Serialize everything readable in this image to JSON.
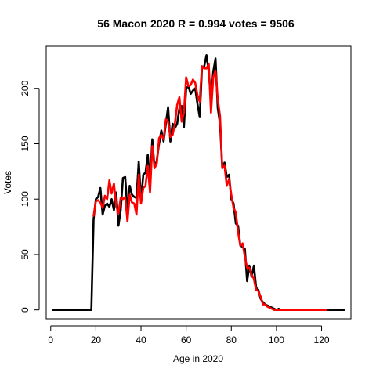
{
  "chart_data": {
    "type": "line",
    "title": "56 Macon 2020 R = 0.994 votes = 9506",
    "xlabel": "Age in 2020",
    "ylabel": "Votes",
    "xlim": [
      -2,
      133
    ],
    "ylim": [
      -8,
      238
    ],
    "xticks": [
      0,
      20,
      40,
      60,
      80,
      100,
      120
    ],
    "yticks": [
      0,
      50,
      100,
      150,
      200
    ],
    "grid": false,
    "legend": "none",
    "series": [
      {
        "color": "#000000",
        "points": [
          [
            1,
            0
          ],
          [
            18,
            0
          ],
          [
            19,
            82
          ],
          [
            20,
            100
          ],
          [
            21,
            102
          ],
          [
            22,
            110
          ],
          [
            23,
            86
          ],
          [
            24,
            94
          ],
          [
            25,
            96
          ],
          [
            26,
            93
          ],
          [
            27,
            100
          ],
          [
            28,
            90
          ],
          [
            29,
            106
          ],
          [
            30,
            76
          ],
          [
            31,
            90
          ],
          [
            32,
            119
          ],
          [
            33,
            120
          ],
          [
            34,
            88
          ],
          [
            35,
            112
          ],
          [
            36,
            104
          ],
          [
            37,
            102
          ],
          [
            38,
            101
          ],
          [
            39,
            134
          ],
          [
            40,
            98
          ],
          [
            41,
            122
          ],
          [
            42,
            124
          ],
          [
            43,
            140
          ],
          [
            44,
            114
          ],
          [
            45,
            154
          ],
          [
            46,
            128
          ],
          [
            47,
            135
          ],
          [
            48,
            150
          ],
          [
            49,
            162
          ],
          [
            50,
            152
          ],
          [
            51,
            168
          ],
          [
            52,
            183
          ],
          [
            53,
            152
          ],
          [
            54,
            168
          ],
          [
            55,
            164
          ],
          [
            56,
            168
          ],
          [
            57,
            182
          ],
          [
            58,
            184
          ],
          [
            59,
            165
          ],
          [
            60,
            200
          ],
          [
            61,
            202
          ],
          [
            62,
            195
          ],
          [
            63,
            198
          ],
          [
            64,
            200
          ],
          [
            65,
            186
          ],
          [
            66,
            174
          ],
          [
            67,
            218
          ],
          [
            68,
            220
          ],
          [
            69,
            230
          ],
          [
            70,
            215
          ],
          [
            71,
            190
          ],
          [
            72,
            215
          ],
          [
            73,
            227
          ],
          [
            74,
            182
          ],
          [
            75,
            168
          ],
          [
            76,
            128
          ],
          [
            77,
            133
          ],
          [
            78,
            120
          ],
          [
            79,
            122
          ],
          [
            80,
            100
          ],
          [
            81,
            96
          ],
          [
            82,
            78
          ],
          [
            83,
            76
          ],
          [
            84,
            58
          ],
          [
            85,
            57
          ],
          [
            86,
            55
          ],
          [
            87,
            26
          ],
          [
            88,
            40
          ],
          [
            89,
            30
          ],
          [
            90,
            40
          ],
          [
            91,
            20
          ],
          [
            92,
            18
          ],
          [
            93,
            10
          ],
          [
            94,
            7
          ],
          [
            95,
            5
          ],
          [
            96,
            4
          ],
          [
            97,
            3
          ],
          [
            98,
            2
          ],
          [
            99,
            1
          ],
          [
            100,
            0
          ],
          [
            101,
            1
          ],
          [
            102,
            0
          ],
          [
            105,
            0
          ],
          [
            110,
            0
          ],
          [
            120,
            0
          ],
          [
            130,
            0
          ]
        ]
      },
      {
        "color": "#ff0000",
        "points": [
          [
            19,
            85
          ],
          [
            20,
            98
          ],
          [
            21,
            99
          ],
          [
            22,
            97
          ],
          [
            23,
            92
          ],
          [
            24,
            103
          ],
          [
            25,
            100
          ],
          [
            26,
            117
          ],
          [
            27,
            105
          ],
          [
            28,
            114
          ],
          [
            29,
            94
          ],
          [
            30,
            87
          ],
          [
            31,
            101
          ],
          [
            32,
            100
          ],
          [
            33,
            102
          ],
          [
            34,
            80
          ],
          [
            35,
            104
          ],
          [
            36,
            97
          ],
          [
            37,
            96
          ],
          [
            38,
            86
          ],
          [
            39,
            122
          ],
          [
            40,
            96
          ],
          [
            41,
            110
          ],
          [
            42,
            112
          ],
          [
            43,
            130
          ],
          [
            44,
            106
          ],
          [
            45,
            148
          ],
          [
            46,
            128
          ],
          [
            47,
            132
          ],
          [
            48,
            155
          ],
          [
            49,
            158
          ],
          [
            50,
            154
          ],
          [
            51,
            172
          ],
          [
            52,
            170
          ],
          [
            53,
            156
          ],
          [
            54,
            158
          ],
          [
            55,
            168
          ],
          [
            56,
            185
          ],
          [
            57,
            192
          ],
          [
            58,
            170
          ],
          [
            59,
            178
          ],
          [
            60,
            210
          ],
          [
            61,
            202
          ],
          [
            62,
            203
          ],
          [
            63,
            208
          ],
          [
            64,
            205
          ],
          [
            65,
            194
          ],
          [
            66,
            188
          ],
          [
            67,
            220
          ],
          [
            68,
            218
          ],
          [
            69,
            218
          ],
          [
            70,
            222
          ],
          [
            71,
            178
          ],
          [
            72,
            210
          ],
          [
            73,
            216
          ],
          [
            74,
            190
          ],
          [
            75,
            175
          ],
          [
            76,
            128
          ],
          [
            77,
            130
          ],
          [
            78,
            112
          ],
          [
            79,
            118
          ],
          [
            80,
            104
          ],
          [
            81,
            92
          ],
          [
            82,
            88
          ],
          [
            83,
            70
          ],
          [
            84,
            58
          ],
          [
            85,
            60
          ],
          [
            86,
            48
          ],
          [
            87,
            38
          ],
          [
            88,
            38
          ],
          [
            89,
            32
          ],
          [
            90,
            28
          ],
          [
            91,
            18
          ],
          [
            92,
            17
          ],
          [
            93,
            12
          ],
          [
            94,
            5
          ],
          [
            95,
            5
          ],
          [
            96,
            3
          ],
          [
            97,
            2
          ],
          [
            98,
            1
          ],
          [
            99,
            0
          ],
          [
            100,
            0
          ],
          [
            102,
            0
          ],
          [
            105,
            0
          ],
          [
            110,
            0
          ],
          [
            112,
            0
          ],
          [
            118,
            0
          ],
          [
            122,
            0
          ]
        ]
      }
    ]
  }
}
